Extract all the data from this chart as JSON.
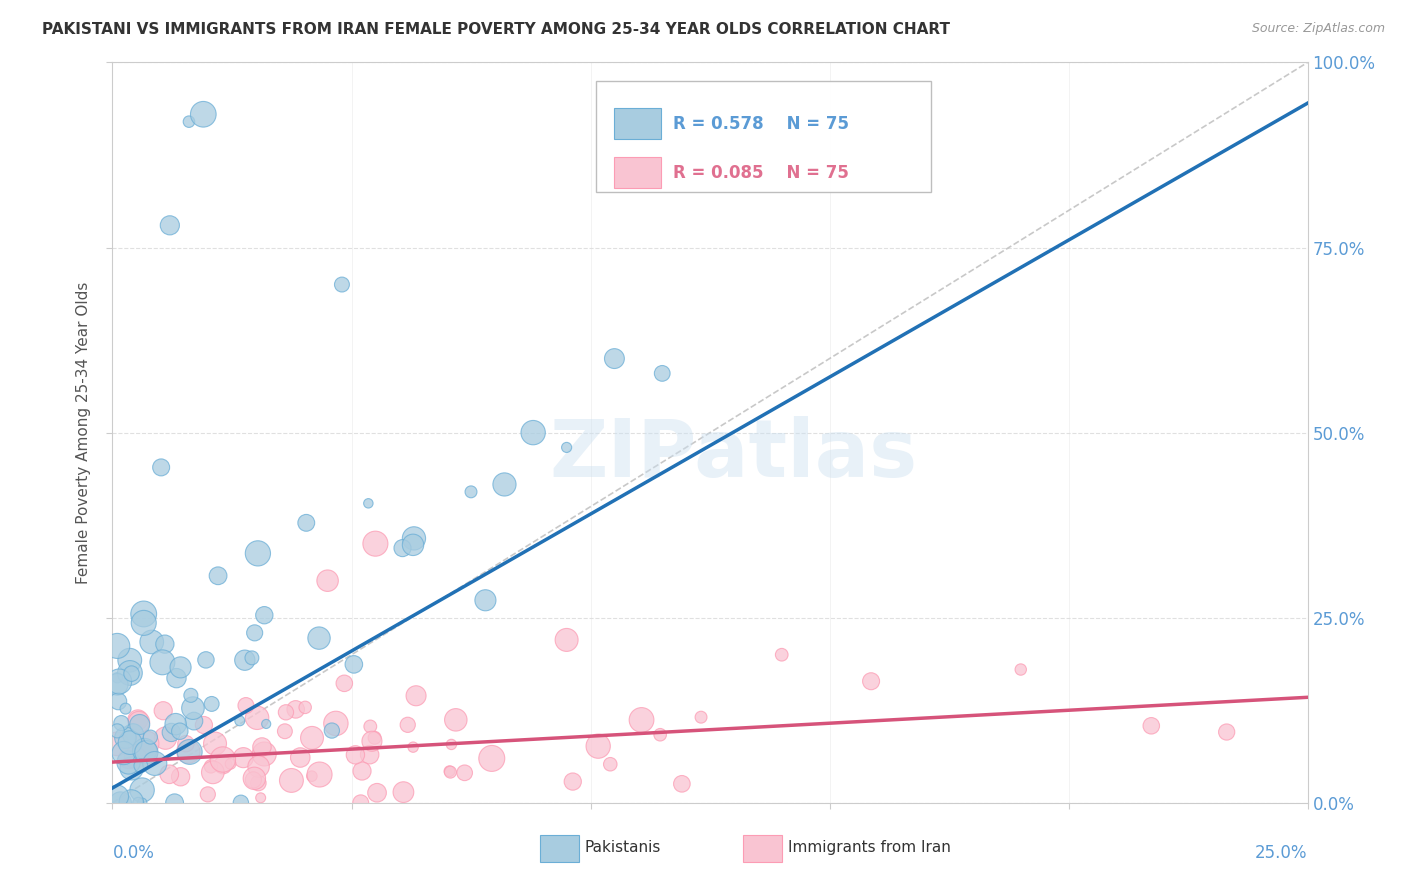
{
  "title": "PAKISTANI VS IMMIGRANTS FROM IRAN FEMALE POVERTY AMONG 25-34 YEAR OLDS CORRELATION CHART",
  "source": "Source: ZipAtlas.com",
  "ylabel": "Female Poverty Among 25-34 Year Olds",
  "blue_color": "#6baed6",
  "pink_color": "#fc9cb4",
  "blue_fill": "#a8cce0",
  "pink_fill": "#f9c4d2",
  "line_blue": "#2171b5",
  "line_pink": "#d6537a",
  "diagonal_color": "#bbbbbb",
  "background_color": "#ffffff",
  "grid_color": "#dddddd",
  "tick_color": "#5b9bd5",
  "R_blue": 0.578,
  "R_pink": 0.085,
  "n_points": 75,
  "xlim": [
    0.0,
    0.25
  ],
  "ylim": [
    0.0,
    1.0
  ],
  "blue_intercept": 0.02,
  "blue_slope": 3.7,
  "pink_intercept": 0.055,
  "pink_slope": 0.35
}
